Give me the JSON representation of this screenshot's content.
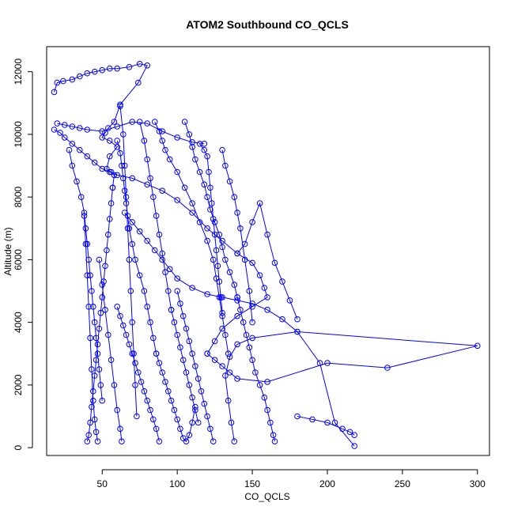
{
  "chart_data": {
    "type": "scatter",
    "title": "ATOM2 Southbound CO_QCLS",
    "xlabel": "CO_QCLS",
    "ylabel": "Altitude (m)",
    "xlim": [
      13,
      308
    ],
    "ylim": [
      -250,
      12800
    ],
    "x_ticks": [
      50,
      100,
      150,
      200,
      250,
      300
    ],
    "y_ticks": [
      0,
      2000,
      4000,
      6000,
      8000,
      10000,
      12000
    ],
    "grid": false,
    "legend": "none",
    "style": "lines-and-open-circles",
    "color": "#0000ff",
    "series": [
      {
        "x": [
          18,
          20,
          24,
          30,
          35,
          40,
          45,
          50,
          55,
          60,
          68,
          75,
          80,
          74,
          62,
          58,
          54,
          52,
          50,
          55,
          60,
          55,
          53,
          56,
          58,
          57
        ],
        "y": [
          11350,
          11650,
          11700,
          11750,
          11850,
          11950,
          12000,
          12050,
          12100,
          12100,
          12150,
          12250,
          12200,
          11650,
          10950,
          10400,
          10200,
          10050,
          9900,
          9800,
          9600,
          9300,
          8900,
          8800,
          8700,
          8300
        ]
      },
      {
        "x": [
          57,
          56,
          55,
          54,
          53,
          52,
          51,
          50,
          49,
          48,
          47,
          46,
          45,
          44,
          43,
          42,
          41,
          40
        ],
        "y": [
          8300,
          7800,
          7300,
          6800,
          6300,
          5800,
          5300,
          4800,
          4300,
          3800,
          3300,
          2800,
          2300,
          1800,
          1300,
          800,
          400,
          200
        ]
      },
      {
        "x": [
          18,
          22,
          25,
          30,
          35,
          40,
          45,
          50,
          55,
          60,
          70,
          80,
          90,
          100,
          110,
          120,
          130,
          140,
          150,
          155,
          158,
          160,
          150,
          140,
          130,
          125,
          120
        ],
        "y": [
          10150,
          10050,
          9900,
          9700,
          9500,
          9300,
          9100,
          8900,
          8800,
          8700,
          8600,
          8400,
          8200,
          7900,
          7500,
          7000,
          6600,
          6200,
          5900,
          5500,
          5100,
          4800,
          4500,
          4200,
          3800,
          3400,
          3000
        ]
      },
      {
        "x": [
          120,
          125,
          130,
          135,
          140,
          160,
          200,
          240,
          300,
          180,
          150,
          140,
          135,
          132,
          134,
          136,
          138
        ],
        "y": [
          3000,
          2800,
          2600,
          2400,
          2200,
          2100,
          2700,
          2550,
          3250,
          3700,
          3500,
          3300,
          2900,
          2300,
          1500,
          800,
          200
        ]
      },
      {
        "x": [
          85,
          88,
          90,
          92,
          95,
          100,
          105,
          110,
          115,
          120,
          124,
          126,
          128,
          130,
          132,
          134
        ],
        "y": [
          10400,
          10100,
          9800,
          9500,
          9200,
          8800,
          8300,
          7800,
          7200,
          6600,
          6000,
          5400,
          4800,
          4200,
          3600,
          3000
        ]
      },
      {
        "x": [
          65,
          70,
          75,
          80,
          85,
          90,
          95,
          100,
          110,
          120,
          130,
          140,
          150,
          160,
          170,
          180,
          195,
          205,
          218
        ],
        "y": [
          7500,
          7200,
          6900,
          6600,
          6300,
          6000,
          5700,
          5400,
          5100,
          4900,
          4800,
          4700,
          4600,
          4400,
          4100,
          3700,
          2700,
          800,
          50
        ]
      },
      {
        "x": [
          60,
          62,
          63,
          64,
          65,
          66,
          67,
          68,
          70,
          72,
          75,
          78,
          80,
          82,
          84,
          86
        ],
        "y": [
          9800,
          9400,
          9000,
          8600,
          8200,
          7800,
          7400,
          7000,
          6500,
          6000,
          5500,
          5000,
          4500,
          4000,
          3500,
          3000
        ]
      },
      {
        "x": [
          86,
          88,
          90,
          92,
          94,
          96,
          98,
          100,
          102,
          104,
          106,
          108,
          110,
          112
        ],
        "y": [
          3000,
          2700,
          2400,
          2100,
          1800,
          1500,
          1200,
          900,
          600,
          300,
          200,
          400,
          800,
          1300
        ]
      },
      {
        "x": [
          28,
          30,
          33,
          36,
          38,
          39,
          40,
          41,
          42,
          43,
          44,
          45,
          46,
          47,
          48,
          49,
          50
        ],
        "y": [
          9500,
          9000,
          8500,
          8000,
          7500,
          7000,
          6500,
          6000,
          5500,
          5000,
          4500,
          4000,
          3500,
          3000,
          2500,
          2000,
          1500
        ]
      },
      {
        "x": [
          105,
          108,
          110,
          112,
          115,
          118,
          120,
          122,
          125,
          128,
          130,
          132,
          135,
          138,
          140
        ],
        "y": [
          10400,
          10000,
          9600,
          9200,
          8800,
          8400,
          8000,
          7600,
          7200,
          6800,
          6400,
          6000,
          5600,
          5200,
          4800
        ]
      },
      {
        "x": [
          140,
          142,
          144,
          146,
          148,
          150,
          152,
          155,
          158,
          160,
          162,
          164,
          165
        ],
        "y": [
          4800,
          4400,
          4000,
          3600,
          3200,
          2800,
          2400,
          2000,
          1600,
          1200,
          800,
          400,
          200
        ]
      },
      {
        "x": [
          115,
          118,
          120,
          121,
          122,
          123,
          124,
          125,
          126,
          127,
          128,
          129,
          130
        ],
        "y": [
          9700,
          9500,
          9300,
          8800,
          8300,
          7800,
          7300,
          6800,
          6300,
          5800,
          5300,
          4800,
          4300
        ]
      },
      {
        "x": [
          60,
          62,
          64,
          66,
          68,
          70,
          72,
          74,
          76,
          78,
          80,
          82,
          84,
          86,
          88
        ],
        "y": [
          4500,
          4200,
          3900,
          3600,
          3300,
          3000,
          2700,
          2400,
          2100,
          1800,
          1500,
          1200,
          900,
          600,
          200
        ]
      },
      {
        "x": [
          38,
          39,
          40,
          41,
          42,
          43,
          44,
          45,
          46,
          47
        ],
        "y": [
          7400,
          6500,
          5500,
          4500,
          3500,
          2500,
          1500,
          900,
          500,
          200
        ]
      },
      {
        "x": [
          100,
          102,
          104,
          106,
          108,
          110,
          112,
          114,
          116,
          118,
          120,
          122,
          124
        ],
        "y": [
          5000,
          4600,
          4200,
          3800,
          3400,
          3000,
          2600,
          2200,
          1800,
          1400,
          1000,
          600,
          200
        ]
      },
      {
        "x": [
          140,
          145,
          150,
          155,
          160,
          165,
          170,
          175,
          180
        ],
        "y": [
          6200,
          6500,
          7200,
          7800,
          6800,
          5900,
          5300,
          4700,
          4100
        ]
      },
      {
        "x": [
          75,
          78,
          80,
          82,
          84,
          86,
          88,
          90,
          92,
          94,
          96
        ],
        "y": [
          10400,
          9800,
          9200,
          8600,
          8000,
          7400,
          6800,
          6200,
          5600,
          5000,
          4400
        ]
      },
      {
        "x": [
          96,
          98,
          100,
          102,
          104,
          106,
          108,
          110,
          112,
          114
        ],
        "y": [
          4400,
          4000,
          3600,
          3200,
          2800,
          2400,
          2000,
          1600,
          1200,
          800
        ]
      },
      {
        "x": [
          62,
          64,
          65,
          66,
          67,
          68,
          69,
          70,
          71,
          72,
          73
        ],
        "y": [
          10900,
          10000,
          9000,
          8000,
          7000,
          6000,
          5000,
          4000,
          3000,
          2000,
          1000
        ]
      },
      {
        "x": [
          48,
          50,
          52,
          54,
          56,
          58,
          60,
          62,
          63
        ],
        "y": [
          6000,
          5200,
          4400,
          3600,
          2800,
          2000,
          1200,
          600,
          200
        ]
      },
      {
        "x": [
          130,
          132,
          135,
          138,
          140,
          142,
          145,
          148,
          150
        ],
        "y": [
          9500,
          9000,
          8500,
          8000,
          7500,
          7000,
          6000,
          5000,
          4000
        ]
      },
      {
        "x": [
          20,
          25,
          30,
          35,
          40,
          50,
          60,
          70,
          80,
          90,
          100,
          110,
          118
        ],
        "y": [
          10350,
          10300,
          10250,
          10200,
          10150,
          10100,
          10250,
          10400,
          10350,
          10100,
          9900,
          9750,
          9700
        ]
      },
      {
        "x": [
          180,
          190,
          200,
          210,
          215,
          218
        ],
        "y": [
          1000,
          900,
          800,
          600,
          500,
          400
        ]
      }
    ]
  }
}
